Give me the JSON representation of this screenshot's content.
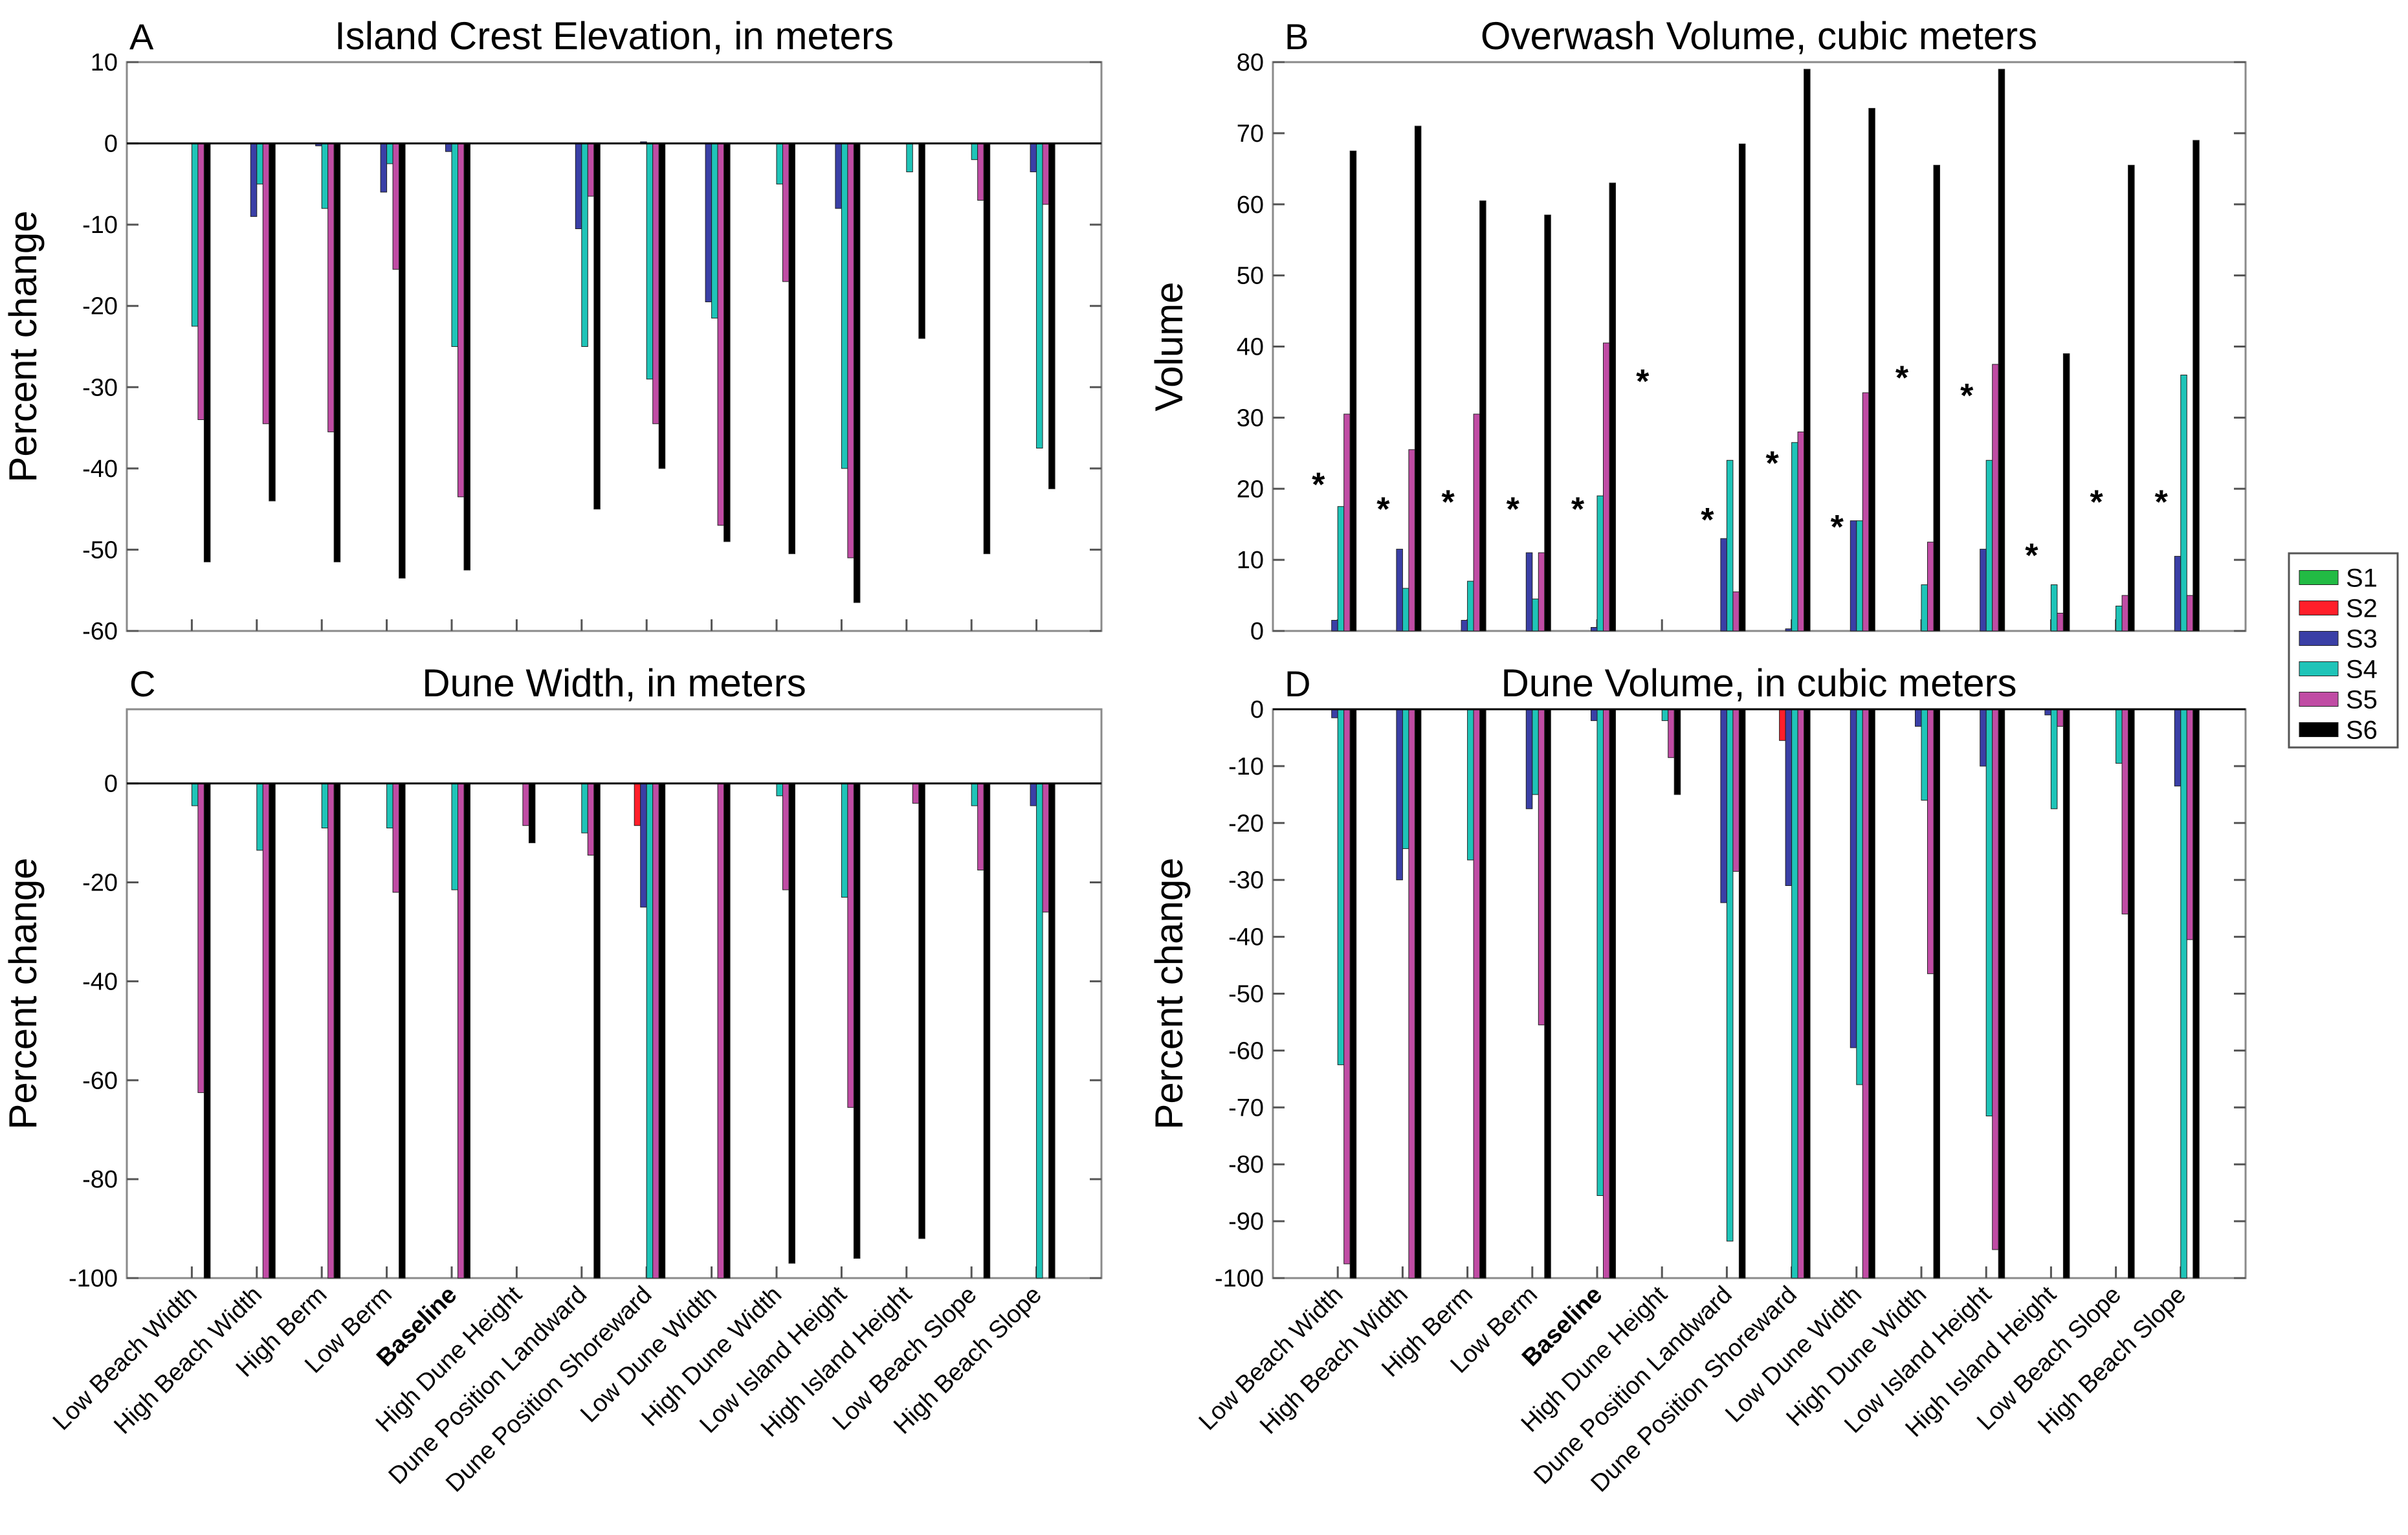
{
  "legend": [
    {
      "name": "S1",
      "color": "#22bb44"
    },
    {
      "name": "S2",
      "color": "#ff1f2a"
    },
    {
      "name": "S3",
      "color": "#3a3fa6"
    },
    {
      "name": "S4",
      "color": "#1fc4b8"
    },
    {
      "name": "S5",
      "color": "#c04ca4"
    },
    {
      "name": "S6",
      "color": "#000000"
    }
  ],
  "chart_data": [
    {
      "id": "A",
      "letter": "A",
      "type": "bar",
      "title": "Island Crest Elevation, in meters",
      "ylabel": "Percent change",
      "xlabel": "",
      "ylim": [
        -60,
        10
      ],
      "yticks": [
        10,
        0,
        -10,
        -20,
        -30,
        -40,
        -50,
        -60
      ],
      "categories": [
        "Low Beach Width",
        "High Beach Width",
        "High Berm",
        "Low Berm",
        "Baseline",
        "High Dune Height",
        "Dune Position Landward",
        "Dune Position Shoreward",
        "Low Dune Width",
        "High Dune Width",
        "Low Island Height",
        "High Island Height",
        "Low Beach Slope",
        "High Beach Slope"
      ],
      "bold_category": "Baseline",
      "series": [
        {
          "name": "S1",
          "values": [
            0,
            0,
            0,
            0,
            0,
            0,
            0,
            0,
            0,
            0,
            0,
            0,
            0,
            0
          ]
        },
        {
          "name": "S2",
          "values": [
            0,
            0,
            0,
            0,
            0,
            0,
            0,
            0,
            0,
            0,
            0,
            0,
            0,
            0
          ]
        },
        {
          "name": "S3",
          "values": [
            0,
            -9,
            -0.3,
            -6,
            -1,
            0,
            -10.5,
            0.2,
            -19.5,
            0,
            -8,
            0,
            0,
            -3.5
          ]
        },
        {
          "name": "S4",
          "values": [
            -22.5,
            -5,
            -8,
            -2.5,
            -25,
            0,
            -25,
            -29,
            -21.5,
            -5,
            -40,
            -3.5,
            -2,
            -37.5
          ]
        },
        {
          "name": "S5",
          "values": [
            -34,
            -34.5,
            -35.5,
            -15.5,
            -43.5,
            0,
            -6.5,
            -34.5,
            -47,
            -17,
            -51,
            0,
            -7,
            -7.5
          ]
        },
        {
          "name": "S6",
          "values": [
            -51.5,
            -44,
            -51.5,
            -53.5,
            -52.5,
            0,
            -45,
            -40,
            -49,
            -50.5,
            -56.5,
            -24,
            -50.5,
            -42.5
          ]
        }
      ],
      "markers": []
    },
    {
      "id": "B",
      "letter": "B",
      "type": "bar",
      "title": "Overwash Volume, cubic meters",
      "ylabel": "Volume",
      "xlabel": "",
      "ylim": [
        0,
        80
      ],
      "yticks": [
        80,
        70,
        60,
        50,
        40,
        30,
        20,
        10,
        0
      ],
      "categories": [
        "Low Beach Width",
        "High Beach Width",
        "High Berm",
        "Low Berm",
        "Baseline",
        "High Dune Height",
        "Dune Position Landward",
        "Dune Position Shoreward",
        "Low Dune Width",
        "High Dune Width",
        "Low Island Height",
        "High Island Height",
        "Low Beach Slope",
        "High Beach Slope"
      ],
      "bold_category": "Baseline",
      "series": [
        {
          "name": "S1",
          "values": [
            0,
            0,
            0,
            0,
            0,
            0,
            0,
            0,
            0,
            0,
            0,
            0,
            0,
            0
          ]
        },
        {
          "name": "S2",
          "values": [
            0,
            0,
            0,
            0,
            0,
            0,
            0,
            0,
            0,
            0,
            0,
            0,
            0,
            0
          ]
        },
        {
          "name": "S3",
          "values": [
            1.5,
            11.5,
            1.5,
            11,
            0.5,
            0,
            13,
            0.3,
            15.5,
            0,
            11.5,
            0,
            0,
            10.5
          ]
        },
        {
          "name": "S4",
          "values": [
            17.5,
            6,
            7,
            4.5,
            19,
            0,
            24,
            26.5,
            15.5,
            6.5,
            24,
            6.5,
            3.5,
            36
          ]
        },
        {
          "name": "S5",
          "values": [
            30.5,
            25.5,
            30.5,
            11,
            40.5,
            0,
            5.5,
            28,
            33.5,
            12.5,
            37.5,
            2.5,
            5,
            5
          ]
        },
        {
          "name": "S6",
          "values": [
            67.5,
            71,
            60.5,
            58.5,
            63,
            0,
            68.5,
            79,
            73.5,
            65.5,
            79,
            39,
            65.5,
            69
          ]
        }
      ],
      "markers": [
        {
          "category": "Low Beach Width",
          "label": "*",
          "value": 21
        },
        {
          "category": "High Beach Width",
          "label": "*",
          "value": 17.5
        },
        {
          "category": "High Berm",
          "label": "*",
          "value": 18.5
        },
        {
          "category": "Low Berm",
          "label": "*",
          "value": 17.5
        },
        {
          "category": "Baseline",
          "label": "*",
          "value": 17.5
        },
        {
          "category": "High Dune Height",
          "label": "*",
          "value": 35.5
        },
        {
          "category": "Dune Position Landward",
          "label": "*",
          "value": 16
        },
        {
          "category": "Dune Position Shoreward",
          "label": "*",
          "value": 24
        },
        {
          "category": "Low Dune Width",
          "label": "*",
          "value": 15
        },
        {
          "category": "High Dune Width",
          "label": "*",
          "value": 36
        },
        {
          "category": "Low Island Height",
          "label": "*",
          "value": 33.5
        },
        {
          "category": "High Island Height",
          "label": "*",
          "value": 11
        },
        {
          "category": "Low Beach Slope",
          "label": "*",
          "value": 18.5
        },
        {
          "category": "High Beach Slope",
          "label": "*",
          "value": 18.5
        }
      ]
    },
    {
      "id": "C",
      "letter": "C",
      "type": "bar",
      "title": "Dune Width, in meters",
      "ylabel": "Percent change",
      "xlabel": "",
      "ylim": [
        -100,
        15
      ],
      "yticks": [
        0,
        -20,
        -40,
        -60,
        -80,
        -100
      ],
      "categories": [
        "Low Beach Width",
        "High Beach Width",
        "High Berm",
        "Low Berm",
        "Baseline",
        "High Dune Height",
        "Dune Position Landward",
        "Dune Position Shoreward",
        "Low Dune Width",
        "High Dune Width",
        "Low Island Height",
        "High Island Height",
        "Low Beach Slope",
        "High Beach Slope"
      ],
      "bold_category": "Baseline",
      "series": [
        {
          "name": "S1",
          "values": [
            0,
            0,
            0,
            0,
            0,
            0,
            0,
            0,
            0,
            0,
            0,
            0,
            0,
            0
          ]
        },
        {
          "name": "S2",
          "values": [
            0,
            0,
            0,
            0,
            0,
            0,
            0,
            -8.5,
            0,
            0,
            0,
            0,
            0,
            0
          ]
        },
        {
          "name": "S3",
          "values": [
            0,
            0,
            0,
            0,
            0,
            0,
            0,
            -25,
            0,
            0,
            0,
            0,
            0,
            -4.5
          ]
        },
        {
          "name": "S4",
          "values": [
            -4.5,
            -13.5,
            -9,
            -9,
            -21.5,
            0,
            -10,
            -100,
            0,
            -2.5,
            -23,
            0,
            -4.5,
            -100
          ]
        },
        {
          "name": "S5",
          "values": [
            -62.5,
            -100,
            -100,
            -22,
            -100,
            -8.5,
            -14.5,
            -100,
            -100,
            -21.5,
            -65.5,
            -4,
            -17.5,
            -26
          ]
        },
        {
          "name": "S6",
          "values": [
            -100,
            -100,
            -100,
            -100,
            -100,
            -12,
            -100,
            -100,
            -100,
            -97,
            -96,
            -92,
            -100,
            -100
          ]
        }
      ],
      "markers": []
    },
    {
      "id": "D",
      "letter": "D",
      "type": "bar",
      "title": "Dune Volume, in cubic meters",
      "ylabel": "Percent change",
      "xlabel": "",
      "ylim": [
        -100,
        0
      ],
      "yticks": [
        0,
        -10,
        -20,
        -30,
        -40,
        -50,
        -60,
        -70,
        -80,
        -90,
        -100
      ],
      "categories": [
        "Low Beach Width",
        "High Beach Width",
        "High Berm",
        "Low Berm",
        "Baseline",
        "High Dune Height",
        "Dune Position Landward",
        "Dune Position Shoreward",
        "Low Dune Width",
        "High Dune Width",
        "Low Island Height",
        "High Island Height",
        "Low Beach Slope",
        "High Beach Slope"
      ],
      "bold_category": "Baseline",
      "series": [
        {
          "name": "S1",
          "values": [
            0,
            0,
            0,
            0,
            0,
            0,
            0,
            0,
            0,
            0,
            0,
            0,
            0,
            0
          ]
        },
        {
          "name": "S2",
          "values": [
            0,
            0,
            0,
            0,
            0,
            0,
            0,
            -5.5,
            0,
            0,
            0,
            0,
            0,
            0
          ]
        },
        {
          "name": "S3",
          "values": [
            -1.5,
            -30,
            0,
            -17.5,
            -2,
            0,
            -34,
            -31,
            -59.5,
            -3,
            -10,
            -1,
            0,
            -13.5
          ]
        },
        {
          "name": "S4",
          "values": [
            -62.5,
            -24.5,
            -26.5,
            -15,
            -85.5,
            -2,
            -93.5,
            -100,
            -66,
            -16,
            -71.5,
            -17.5,
            -9.5,
            -100
          ]
        },
        {
          "name": "S5",
          "values": [
            -97.5,
            -100,
            -100,
            -55.5,
            -100,
            -8.5,
            -28.5,
            -100,
            -100,
            -46.5,
            -95,
            -3,
            -36,
            -40.5
          ]
        },
        {
          "name": "S6",
          "values": [
            -100,
            -100,
            -100,
            -100,
            -100,
            -15,
            -100,
            -100,
            -100,
            -100,
            -100,
            -100,
            -100,
            -100
          ]
        }
      ],
      "markers": []
    }
  ]
}
